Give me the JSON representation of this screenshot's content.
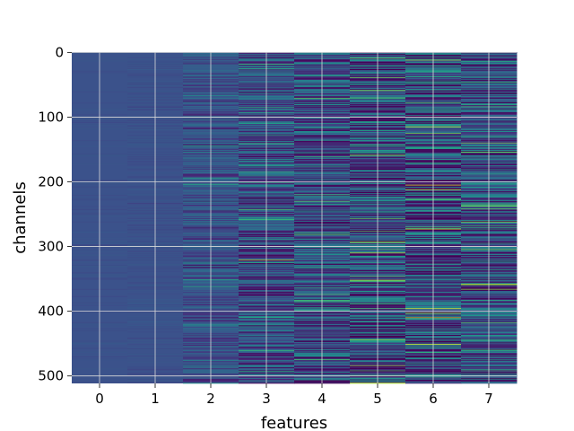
{
  "chart_data": {
    "type": "heatmap",
    "title": "",
    "xlabel": "features",
    "ylabel": "channels",
    "x_categories": [
      "0",
      "1",
      "2",
      "3",
      "4",
      "5",
      "6",
      "7"
    ],
    "y_ticks": [
      0,
      100,
      200,
      300,
      400,
      500
    ],
    "y_tick_labels": [
      "0",
      "100",
      "200",
      "300",
      "400",
      "500"
    ],
    "rows": 512,
    "xlim": [
      -0.5,
      7.5
    ],
    "ylim": [
      511.5,
      -0.5
    ],
    "grid": true,
    "colormap": "viridis",
    "base_color": "#3b528b",
    "column_variability": [
      0.02,
      0.03,
      0.2,
      0.38,
      0.45,
      0.55,
      0.62,
      0.5
    ],
    "notable_cells": [
      {
        "feature": 6,
        "channel": 12,
        "value": 0.85
      },
      {
        "feature": 6,
        "channel": 205,
        "value": 0.95
      },
      {
        "feature": 6,
        "channel": 212,
        "value": 0.92
      },
      {
        "feature": 3,
        "channel": 321,
        "value": 0.9
      },
      {
        "feature": 4,
        "channel": 220,
        "value": 0.7
      },
      {
        "feature": 4,
        "channel": 475,
        "value": 0.72
      },
      {
        "feature": 5,
        "channel": 276,
        "value": 0.75
      },
      {
        "feature": 5,
        "channel": 492,
        "value": 0.7
      },
      {
        "feature": 6,
        "channel": 78,
        "value": 0.72
      },
      {
        "feature": 6,
        "channel": 270,
        "value": 0.74
      },
      {
        "feature": 7,
        "channel": 84,
        "value": 0.68
      },
      {
        "feature": 3,
        "channel": 18,
        "value": 0.68
      },
      {
        "feature": 3,
        "channel": 258,
        "value": 0.66
      },
      {
        "feature": 2,
        "channel": 204,
        "value": 0.6
      },
      {
        "feature": 5,
        "channel": 155,
        "value": 0.62
      }
    ]
  }
}
